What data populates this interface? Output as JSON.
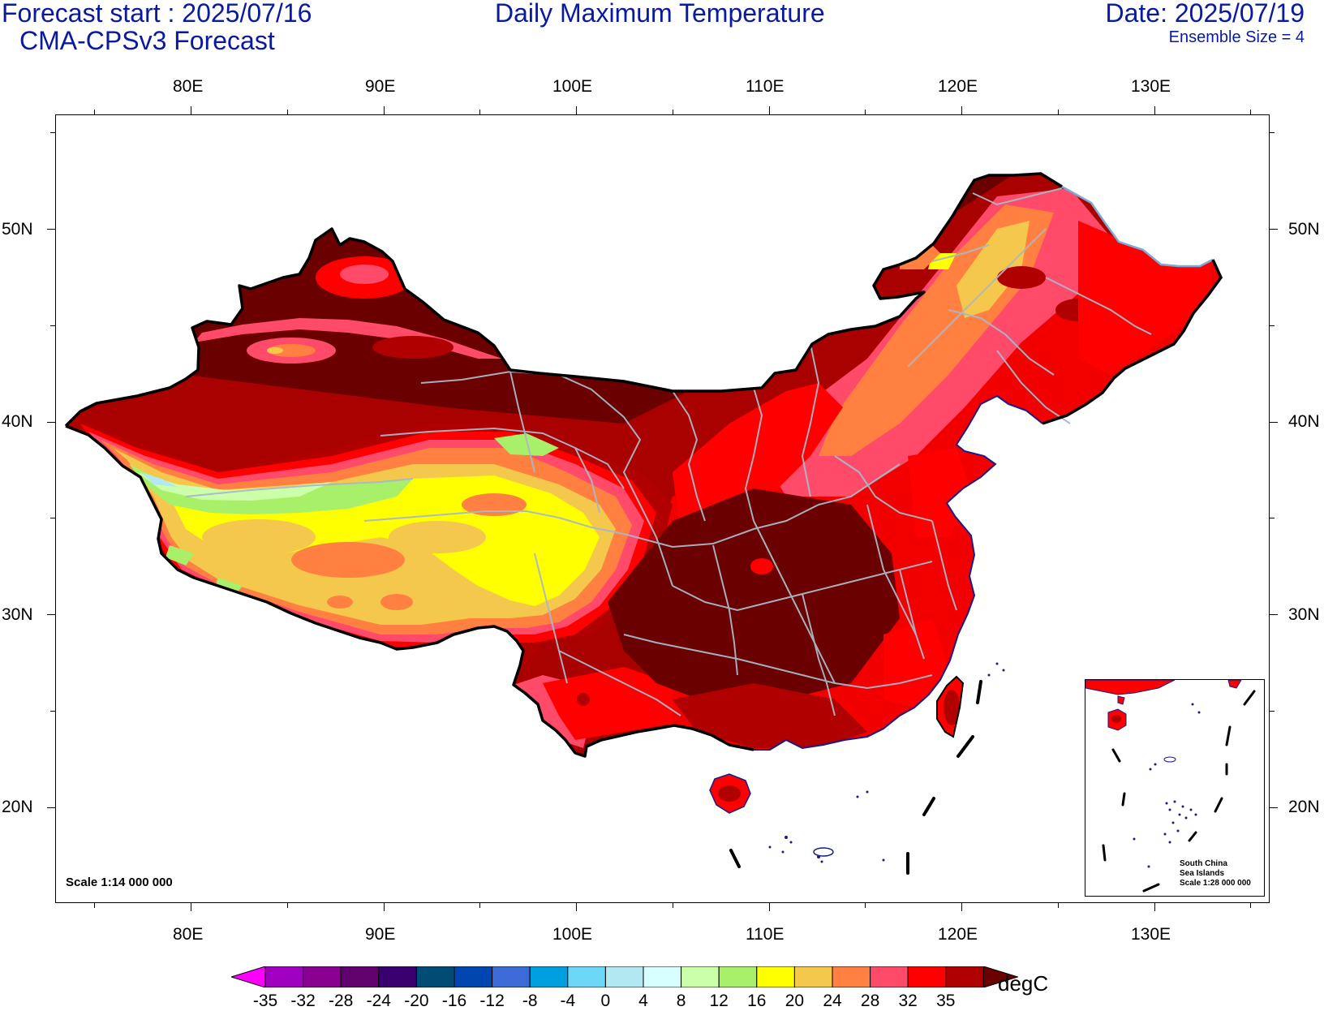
{
  "header": {
    "forecast_start": "Forecast start : 2025/07/16",
    "model": "CMA-CPSv3 Forecast",
    "title": "Daily Maximum Temperature",
    "date": "Date: 2025/07/19",
    "ensemble": "Ensemble Size = 4"
  },
  "map": {
    "lon_labels": [
      "80E",
      "90E",
      "100E",
      "110E",
      "120E",
      "130E"
    ],
    "lat_labels": [
      "50N",
      "40N",
      "30N",
      "20N"
    ],
    "scale_note": "Scale 1:14 000 000",
    "inset": {
      "title_line1": "South China",
      "title_line2": "Sea Islands",
      "title_line3": "Scale 1:28 000 000"
    }
  },
  "colorbar": {
    "unit": "degC",
    "labels": [
      "-35",
      "-32",
      "-28",
      "-24",
      "-20",
      "-16",
      "-12",
      "-8",
      "-4",
      "0",
      "4",
      "8",
      "12",
      "16",
      "20",
      "24",
      "28",
      "32",
      "35"
    ],
    "colors": [
      "#ff00ff",
      "#a000c0",
      "#8a0090",
      "#62006e",
      "#3a0070",
      "#004c74",
      "#0046b0",
      "#3c6ad6",
      "#00a0e0",
      "#6cd6f6",
      "#b2e8f2",
      "#d8ffff",
      "#ccffaa",
      "#a8f06a",
      "#ffff00",
      "#f4c84c",
      "#ff8040",
      "#ff4a6a",
      "#ff0000",
      "#b00000",
      "#6a0000"
    ]
  },
  "colors": {
    "text_header": "#0a1aa0",
    "coast_line": "#000000",
    "province_line": "#a8b8c8"
  }
}
